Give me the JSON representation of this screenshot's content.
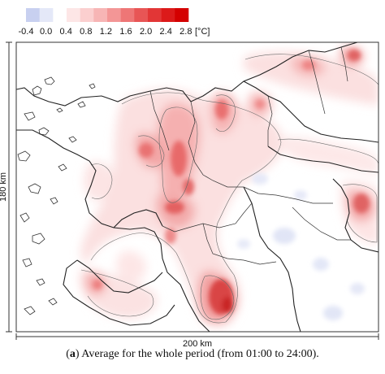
{
  "legend": {
    "ticks": [
      "-0.4",
      "0.0",
      "0.4",
      "0.8",
      "1.2",
      "1.6",
      "2.0",
      "2.4",
      "2.8"
    ],
    "unit": "[°C]",
    "colors": [
      "#c8d0f0",
      "#e4e8f8",
      "#ffffff",
      "#fde6e6",
      "#fbcfcf",
      "#f7b5b5",
      "#f39696",
      "#ee7676",
      "#e85555",
      "#e23636",
      "#dc1a1a",
      "#d40000"
    ]
  },
  "axes": {
    "y_label": "180 km",
    "x_label": "200 km"
  },
  "caption": {
    "letter": "a",
    "text": " Average for the whole period (from 01:00 to 24:00)."
  },
  "map_colors": {
    "low": "#fde8e8",
    "mid": "#f5a6a6",
    "high": "#e56a6a",
    "peak": "#d83a3a",
    "negative": "#e3e6f6",
    "coast": "#222222",
    "contour": "#555555"
  }
}
